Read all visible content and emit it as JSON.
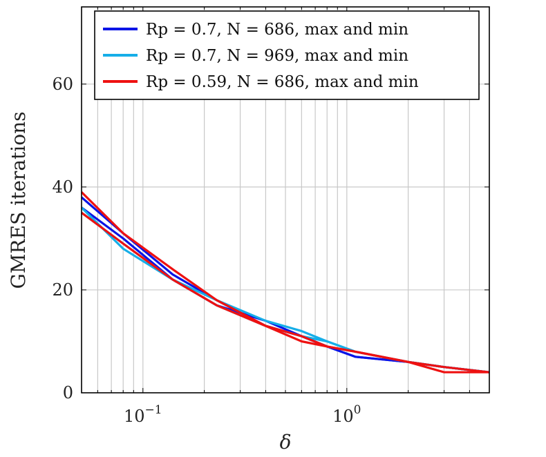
{
  "chart_data": {
    "type": "line",
    "title": "",
    "xlabel": "δ",
    "ylabel": "GMRES iterations",
    "xscale": "log",
    "xlim": [
      0.05,
      5
    ],
    "ylim": [
      0,
      75
    ],
    "grid": true,
    "legend_position": "top",
    "x_ticks": [
      {
        "value": 0.1,
        "base": "10",
        "exp": "−1"
      },
      {
        "value": 1,
        "base": "10",
        "exp": "0"
      }
    ],
    "y_ticks": [
      0,
      20,
      40,
      60
    ],
    "series": [
      {
        "name": "Rp = 0.7, N = 686, max and min",
        "color": "#0a14e6",
        "lines": [
          {
            "x": [
              0.05,
              0.08,
              0.14,
              0.23,
              0.4,
              0.6,
              0.8,
              1.1,
              2,
              3,
              5
            ],
            "y": [
              38,
              31,
              23,
              18,
              13,
              11,
              9,
              7,
              6,
              5,
              4
            ]
          },
          {
            "x": [
              0.05,
              0.08,
              0.14,
              0.23,
              0.4,
              0.6,
              0.8,
              1.1,
              2,
              3,
              5
            ],
            "y": [
              36,
              30,
              22,
              17,
              14,
              11,
              9,
              7,
              6,
              5,
              4
            ]
          }
        ]
      },
      {
        "name": "Rp = 0.7, N = 969, max and min",
        "color": "#16aee8",
        "lines": [
          {
            "x": [
              0.05,
              0.08,
              0.14,
              0.23,
              0.4,
              0.6,
              0.8,
              1.1,
              2,
              3,
              5
            ],
            "y": [
              36,
              28,
              22,
              18,
              14,
              12,
              10,
              8,
              6,
              5,
              4
            ]
          },
          {
            "x": [
              0.05,
              0.08,
              0.14,
              0.23,
              0.4,
              0.6,
              0.8,
              1.1,
              2,
              3,
              5
            ],
            "y": [
              35,
              29,
              22,
              17,
              13,
              11,
              10,
              8,
              6,
              5,
              4
            ]
          }
        ]
      },
      {
        "name": "Rp = 0.59, N = 686, max and min",
        "color": "#ee1111",
        "lines": [
          {
            "x": [
              0.05,
              0.08,
              0.14,
              0.23,
              0.4,
              0.6,
              0.8,
              1.1,
              2,
              3,
              5
            ],
            "y": [
              39,
              31,
              24,
              18,
              13,
              11,
              9,
              8,
              6,
              5,
              4
            ]
          },
          {
            "x": [
              0.05,
              0.08,
              0.14,
              0.23,
              0.4,
              0.6,
              0.8,
              1.1,
              2,
              3,
              5
            ],
            "y": [
              35,
              29,
              22,
              17,
              13,
              10,
              9,
              8,
              6,
              4,
              4
            ]
          }
        ]
      }
    ],
    "legend": [
      {
        "sub": "p",
        "rest_pre": " = 0.7, ",
        "rest_post": " = 686, max and min"
      },
      {
        "sub": "p",
        "rest_pre": " = 0.7, ",
        "rest_post": " = 969, max and min"
      },
      {
        "sub": "p",
        "rest_pre": " = 0.59, ",
        "rest_post": " = 686, max and min"
      }
    ]
  }
}
